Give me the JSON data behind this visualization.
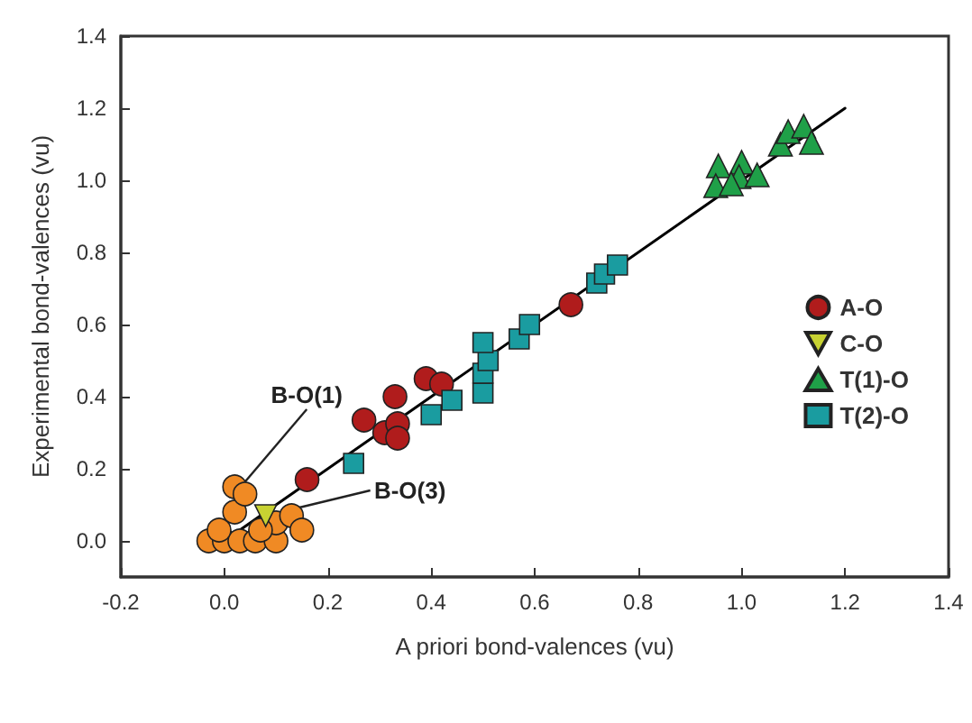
{
  "chart_data": {
    "type": "scatter",
    "xlabel": "A priori bond-valences (vu)",
    "ylabel": "Experimental bond-valences (vu)",
    "xlim": [
      -0.2,
      1.4
    ],
    "xticks": [
      -0.2,
      {
        "value": 0,
        "label": "0.0"
      },
      0.2,
      0.4,
      0.6,
      0.8,
      {
        "value": 1,
        "label": "1.0"
      },
      1.2,
      1.4
    ],
    "ylim": [
      -0.1,
      1.4
    ],
    "yticks": [
      {
        "value": 0,
        "label": "0.0"
      },
      0.2,
      0.4,
      0.6,
      0.8,
      {
        "value": 1,
        "label": "1.0"
      },
      1.2,
      1.4
    ],
    "grid": false,
    "legend": "right",
    "annotations": [
      {
        "text": "B-O(1)",
        "x": 0.02,
        "y": 0.13
      },
      {
        "text": "B-O(3)",
        "x": 0.08,
        "y": 0.07
      }
    ],
    "series": [
      {
        "color": "#f08a24",
        "marker": "circle",
        "x": [
          -0.03,
          0.0,
          0.03,
          0.06,
          0.1,
          0.02,
          0.02,
          0.04,
          0.1,
          0.13,
          0.15,
          -0.01,
          0.07
        ],
        "values": [
          0.0,
          0.0,
          0.0,
          0.0,
          0.0,
          0.08,
          0.15,
          0.13,
          0.05,
          0.07,
          0.03,
          0.03,
          0.03
        ]
      },
      {
        "type": "line",
        "color": "#000000",
        "marker": "none",
        "x": [
          0.0,
          1.2
        ],
        "values": [
          0.0,
          1.2
        ]
      },
      {
        "name": "A-O",
        "color": "#b01c1c",
        "marker": "circle",
        "x": [
          0.16,
          0.27,
          0.31,
          0.335,
          0.335,
          0.33,
          0.39,
          0.42,
          0.67
        ],
        "values": [
          0.17,
          0.335,
          0.3,
          0.325,
          0.285,
          0.4,
          0.45,
          0.435,
          0.655
        ]
      },
      {
        "name": "C-O",
        "color": "#c8d232",
        "marker": "triangle-down",
        "x": [
          0.08
        ],
        "values": [
          0.07
        ]
      },
      {
        "name": "T(1)-O",
        "color": "#1fa048",
        "marker": "triangle",
        "x": [
          0.955,
          0.95,
          1.0,
          0.995,
          1.03,
          1.075,
          1.09,
          1.12,
          1.135,
          0.98
        ],
        "values": [
          1.04,
          0.985,
          1.05,
          1.01,
          1.015,
          1.1,
          1.135,
          1.15,
          1.105,
          0.99
        ]
      },
      {
        "name": "T(2)-O",
        "color": "#1a9ca0",
        "marker": "square",
        "x": [
          0.25,
          0.4,
          0.44,
          0.5,
          0.5,
          0.51,
          0.5,
          0.57,
          0.59,
          0.72,
          0.735,
          0.76
        ],
        "values": [
          0.215,
          0.35,
          0.39,
          0.41,
          0.465,
          0.5,
          0.55,
          0.56,
          0.6,
          0.715,
          0.74,
          0.765
        ]
      }
    ]
  }
}
